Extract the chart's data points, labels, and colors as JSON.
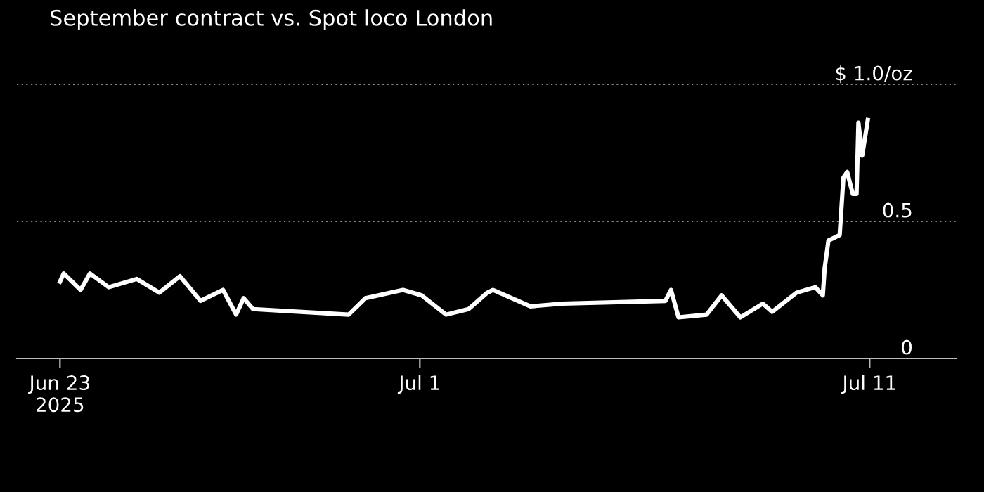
{
  "chart_data": {
    "type": "line",
    "title": "September contract vs. Spot loco London",
    "x": [
      "2025-06-23T00:00",
      "2025-06-23T02:00",
      "2025-06-23T11:00",
      "2025-06-23T16:00",
      "2025-06-24T02:00",
      "2025-06-24T17:00",
      "2025-06-25T05:00",
      "2025-06-25T16:00",
      "2025-06-26T03:00",
      "2025-06-26T15:00",
      "2025-06-26T22:00",
      "2025-06-27T02:00",
      "2025-06-27T07:00",
      "2025-06-29T10:00",
      "2025-06-29T19:00",
      "2025-06-30T15:00",
      "2025-07-01T01:00",
      "2025-07-01T14:00",
      "2025-07-02T02:00",
      "2025-07-02T12:00",
      "2025-07-02T15:00",
      "2025-07-03T11:00",
      "2025-07-04T04:00",
      "2025-07-06T11:00",
      "2025-07-06T14:00",
      "2025-07-06T18:00",
      "2025-07-07T09:00",
      "2025-07-07T17:00",
      "2025-07-08T03:00",
      "2025-07-08T15:00",
      "2025-07-08T20:00",
      "2025-07-09T09:00",
      "2025-07-09T19:00",
      "2025-07-09T23:00",
      "2025-07-10T00:00",
      "2025-07-10T02:00",
      "2025-07-10T08:00",
      "2025-07-10T10:00",
      "2025-07-10T12:00",
      "2025-07-10T15:00",
      "2025-07-10T17:00",
      "2025-07-10T18:00",
      "2025-07-10T20:00",
      "2025-07-10T23:00"
    ],
    "series": [
      {
        "color": "#ffffff",
        "values": [
          0.28,
          0.31,
          0.25,
          0.31,
          0.26,
          0.29,
          0.24,
          0.3,
          0.21,
          0.25,
          0.16,
          0.22,
          0.18,
          0.16,
          0.22,
          0.25,
          0.23,
          0.16,
          0.18,
          0.24,
          0.25,
          0.19,
          0.2,
          0.21,
          0.25,
          0.15,
          0.16,
          0.23,
          0.15,
          0.2,
          0.17,
          0.24,
          0.26,
          0.23,
          0.33,
          0.43,
          0.45,
          0.66,
          0.68,
          0.6,
          0.6,
          0.86,
          0.74,
          0.87
        ]
      }
    ],
    "xlim": [
      "2025-06-22T01:00",
      "2025-07-12T22:00"
    ],
    "xticks": [
      {
        "value": "2025-06-23",
        "label": "Jun 23\n2025"
      },
      {
        "value": "2025-07-01",
        "label": "Jul 1"
      },
      {
        "value": "2025-07-11",
        "label": "Jul 11"
      }
    ],
    "ylim": [
      0,
      1.0
    ],
    "yticks": [
      0,
      0.5,
      {
        "value": 1.0,
        "label": "$ 1.0/oz"
      }
    ],
    "grid": "y",
    "legend": false,
    "marker": "none",
    "line_style": "solid"
  }
}
